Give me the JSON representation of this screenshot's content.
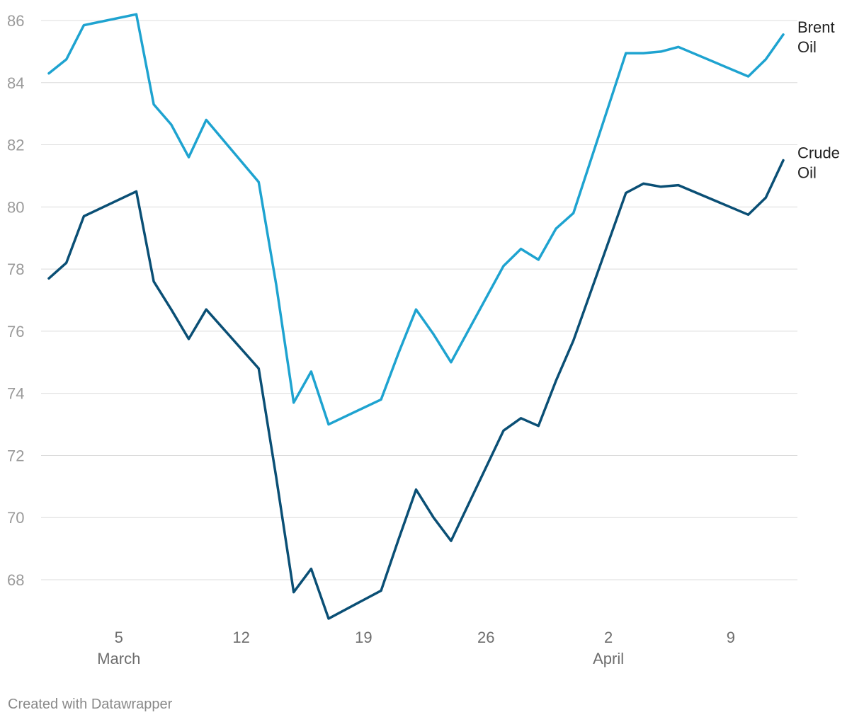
{
  "chart_data": {
    "type": "line",
    "x": [
      "2024-03-01",
      "2024-03-02",
      "2024-03-03",
      "2024-03-06",
      "2024-03-07",
      "2024-03-08",
      "2024-03-09",
      "2024-03-10",
      "2024-03-13",
      "2024-03-14",
      "2024-03-15",
      "2024-03-16",
      "2024-03-17",
      "2024-03-20",
      "2024-03-21",
      "2024-03-22",
      "2024-03-23",
      "2024-03-24",
      "2024-03-27",
      "2024-03-28",
      "2024-03-29",
      "2024-03-30",
      "2024-03-31",
      "2024-04-03",
      "2024-04-04",
      "2024-04-05",
      "2024-04-06",
      "2024-04-10",
      "2024-04-11",
      "2024-04-12"
    ],
    "series": [
      {
        "name": "Brent Oil",
        "color": "#1ea3d0",
        "values": [
          84.3,
          84.75,
          85.85,
          86.2,
          83.3,
          82.65,
          81.6,
          82.8,
          80.8,
          77.5,
          73.7,
          74.7,
          73.0,
          73.8,
          75.3,
          76.7,
          75.9,
          75.0,
          78.1,
          78.65,
          78.3,
          79.3,
          79.8,
          84.95,
          84.95,
          85.0,
          85.15,
          84.2,
          84.75,
          85.55
        ]
      },
      {
        "name": "Crude Oil",
        "color": "#0a4f75",
        "values": [
          77.7,
          78.2,
          79.7,
          80.5,
          77.6,
          76.7,
          75.75,
          76.7,
          74.8,
          71.3,
          67.6,
          68.35,
          66.75,
          67.65,
          69.3,
          70.9,
          70.0,
          69.25,
          72.8,
          73.2,
          72.95,
          74.4,
          75.7,
          80.45,
          80.75,
          80.65,
          80.7,
          79.75,
          80.3,
          81.5
        ]
      }
    ],
    "xticks": [
      {
        "date": "2024-03-05",
        "label": "5",
        "sublabel": "March"
      },
      {
        "date": "2024-03-12",
        "label": "12",
        "sublabel": ""
      },
      {
        "date": "2024-03-19",
        "label": "19",
        "sublabel": ""
      },
      {
        "date": "2024-03-26",
        "label": "26",
        "sublabel": ""
      },
      {
        "date": "2024-04-02",
        "label": "2",
        "sublabel": "April"
      },
      {
        "date": "2024-04-09",
        "label": "9",
        "sublabel": ""
      }
    ],
    "yticks": [
      68,
      70,
      72,
      74,
      76,
      78,
      80,
      82,
      84,
      86
    ],
    "ylim": [
      66.5,
      86.2
    ],
    "xlim": [
      "2024-03-01",
      "2024-04-12"
    ],
    "grid": "horizontal",
    "legend": "labels at line ends",
    "series_labels": [
      [
        "Brent",
        "Oil"
      ],
      [
        "Crude",
        "Oil"
      ]
    ]
  },
  "footer": {
    "credit": "Created with Datawrapper"
  }
}
